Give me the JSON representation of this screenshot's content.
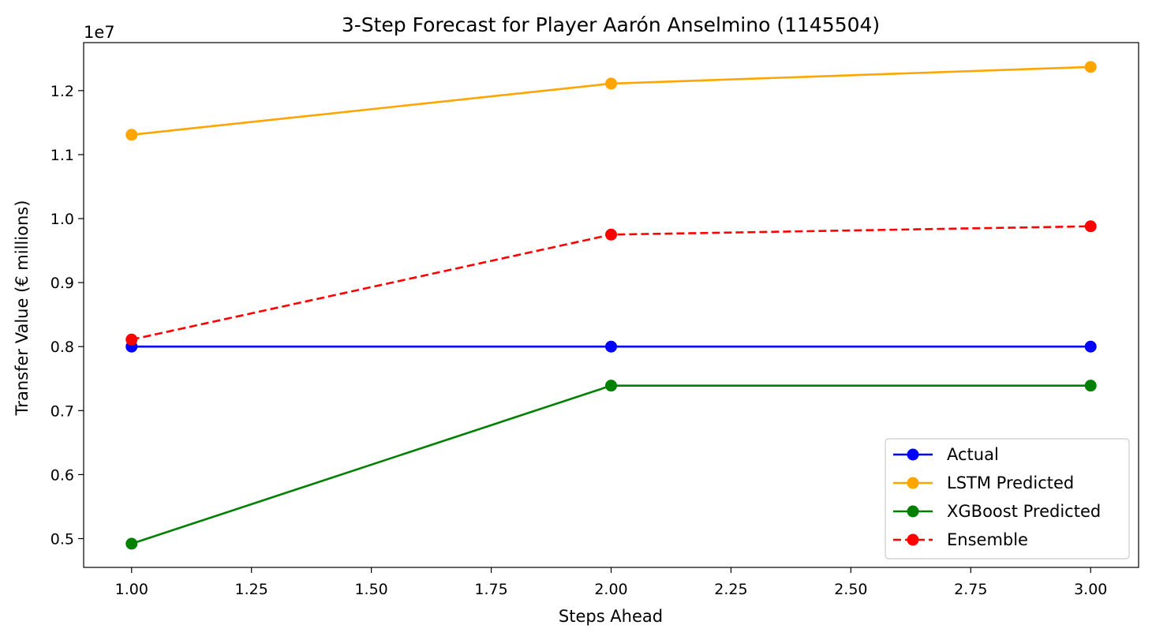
{
  "chart_data": {
    "type": "line",
    "title": "3-Step Forecast for Player Aarón Anselmino (1145504)",
    "xlabel": "Steps Ahead",
    "ylabel": "Transfer Value (€ millions)",
    "y_offset_text": "1e7",
    "x": [
      1.0,
      2.0,
      3.0
    ],
    "xlim": [
      0.9,
      3.1
    ],
    "ylim": [
      4550000,
      12750000
    ],
    "x_ticks": [
      1.0,
      1.25,
      1.5,
      1.75,
      2.0,
      2.25,
      2.5,
      2.75,
      3.0
    ],
    "x_tick_labels": [
      "1.00",
      "1.25",
      "1.50",
      "1.75",
      "2.00",
      "2.25",
      "2.50",
      "2.75",
      "3.00"
    ],
    "y_ticks": [
      5000000,
      6000000,
      7000000,
      8000000,
      9000000,
      10000000,
      11000000,
      12000000
    ],
    "y_tick_labels": [
      "0.5",
      "0.6",
      "0.7",
      "0.8",
      "0.9",
      "1.0",
      "1.1",
      "1.2"
    ],
    "grid": false,
    "legend_position": "lower-right",
    "series": [
      {
        "name": "Actual",
        "values": [
          8000000,
          8000000,
          8000000
        ],
        "color": "#0000ff",
        "linestyle": "solid",
        "marker": "circle"
      },
      {
        "name": "LSTM Predicted",
        "values": [
          11310000,
          12110000,
          12370000
        ],
        "color": "#ffa500",
        "linestyle": "solid",
        "marker": "circle"
      },
      {
        "name": "XGBoost Predicted",
        "values": [
          4920000,
          7390000,
          7390000
        ],
        "color": "#008000",
        "linestyle": "solid",
        "marker": "circle"
      },
      {
        "name": "Ensemble",
        "values": [
          8110000,
          9750000,
          9880000
        ],
        "color": "#ff0000",
        "linestyle": "dashed",
        "marker": "circle"
      }
    ]
  }
}
